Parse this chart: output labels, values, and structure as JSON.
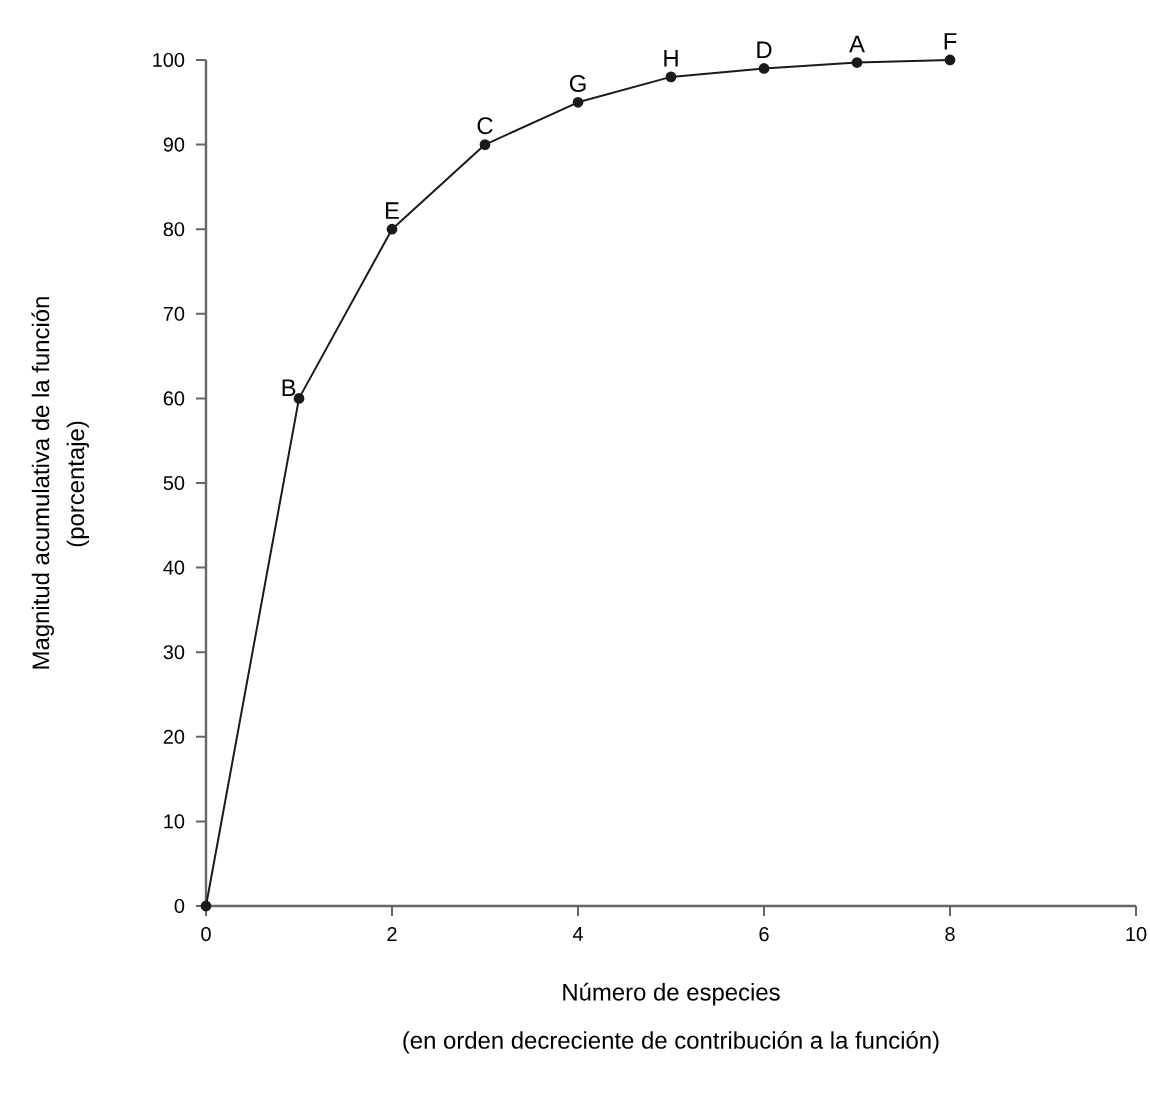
{
  "chart_data": {
    "type": "line",
    "x": [
      0,
      1,
      2,
      3,
      4,
      5,
      6,
      7,
      8
    ],
    "values": [
      0,
      60,
      80,
      90,
      95,
      98,
      99,
      99.7,
      100
    ],
    "color": "#1a1a1a",
    "marker": "circle",
    "line_style": "solid",
    "grid": false,
    "xlim": [
      0,
      10
    ],
    "xticks": [
      0,
      2,
      4,
      6,
      8,
      10
    ],
    "ylim": [
      0,
      100
    ],
    "yticks": [
      0,
      10,
      20,
      30,
      40,
      50,
      60,
      70,
      80,
      90,
      100
    ],
    "xlabel": "Número de especies",
    "ylabel": "Magnitud acumulativa de la función",
    "annotations": [
      {
        "text": "B",
        "x": 1,
        "y": 60
      },
      {
        "text": "E",
        "x": 2,
        "y": 80
      },
      {
        "text": "C",
        "x": 3,
        "y": 90
      },
      {
        "text": "G",
        "x": 4,
        "y": 95
      },
      {
        "text": "H",
        "x": 5,
        "y": 98
      },
      {
        "text": "D",
        "x": 6,
        "y": 99
      },
      {
        "text": "A",
        "x": 7,
        "y": 99.7
      },
      {
        "text": "F",
        "x": 8,
        "y": 100
      },
      "(en orden decreciente de contribución a la función)",
      "(porcentaje)"
    ]
  }
}
